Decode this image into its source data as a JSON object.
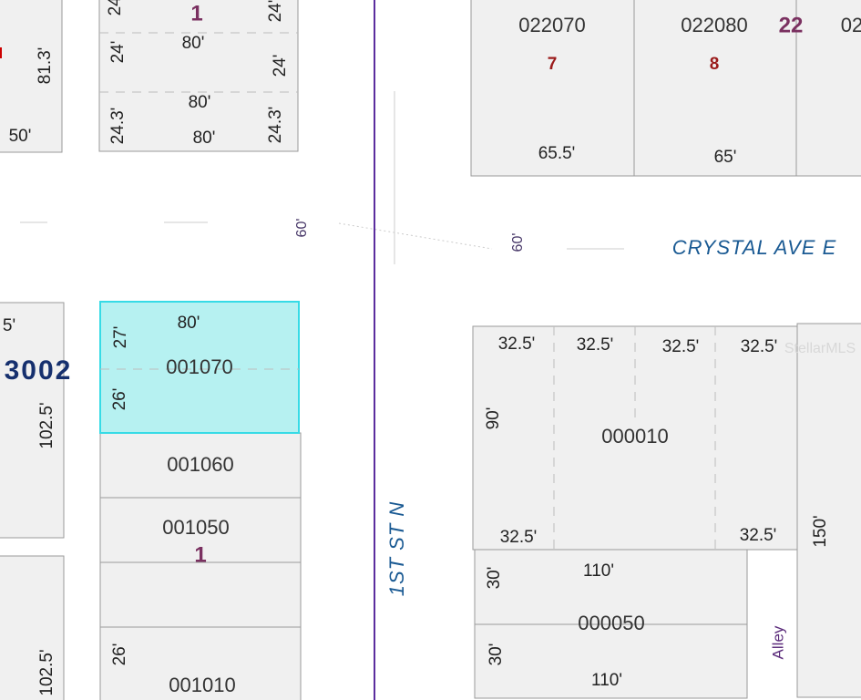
{
  "labels": [
    "24'",
    "1",
    "24'",
    "80'",
    "24'",
    "24'",
    "81.3'",
    "80'",
    "24.3'",
    "24.3'",
    "80'",
    "50'",
    "022070",
    "7",
    "022080",
    "8",
    "22",
    "02",
    "65.5'",
    "65'",
    "60'",
    "60'",
    "CRYSTAL AVE E",
    "5'",
    "3002",
    "102.5'",
    "80'",
    "27'",
    "001070",
    "26'",
    "001060",
    "001050",
    "1",
    "26'",
    "001010",
    "102.5'",
    "1ST ST N",
    "32.5'",
    "32.5'",
    "32.5'",
    "32.5'",
    "90'",
    "000010",
    "32.5'",
    "32.5'",
    "StellarMLS",
    "150'",
    "30'",
    "110'",
    "000050",
    "30'",
    "110'",
    "Alley"
  ]
}
